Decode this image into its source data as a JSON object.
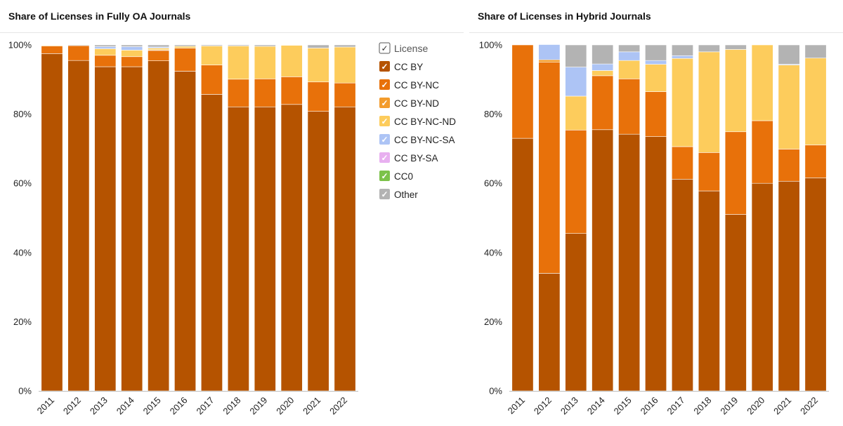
{
  "legend": {
    "header": "License",
    "items": [
      {
        "label": "CC BY",
        "color": "#b55300"
      },
      {
        "label": "CC BY-NC",
        "color": "#e8710a"
      },
      {
        "label": "CC BY-ND",
        "color": "#f39c2d"
      },
      {
        "label": "CC BY-NC-ND",
        "color": "#fdcc5c"
      },
      {
        "label": "CC BY-NC-SA",
        "color": "#adc4f5"
      },
      {
        "label": "CC BY-SA",
        "color": "#e8b0f0"
      },
      {
        "label": "CC0",
        "color": "#7cc24a"
      },
      {
        "label": "Other",
        "color": "#b3b3b3"
      }
    ]
  },
  "chart_data": [
    {
      "type": "bar",
      "stacked": true,
      "title": "Share of Licenses in Fully OA Journals",
      "categories": [
        "2011",
        "2012",
        "2013",
        "2014",
        "2015",
        "2016",
        "2017",
        "2018",
        "2019",
        "2020",
        "2021",
        "2022"
      ],
      "ylim": [
        0,
        100
      ],
      "yticks": [
        "0%",
        "20%",
        "40%",
        "60%",
        "80%",
        "100%"
      ],
      "grid": false,
      "legend_position": "right",
      "series": [
        {
          "name": "CC BY",
          "values": [
            97.5,
            95.5,
            93.7,
            93.7,
            95.4,
            92.4,
            85.7,
            82.1,
            82.1,
            82.8,
            80.8,
            82.1
          ]
        },
        {
          "name": "CC BY-NC",
          "values": [
            2.2,
            4.3,
            3.3,
            2.9,
            3.0,
            6.7,
            8.5,
            8.0,
            8.1,
            8.0,
            8.5,
            6.9
          ]
        },
        {
          "name": "CC BY-ND",
          "values": [
            0,
            0,
            0,
            0,
            0.2,
            0,
            0,
            0,
            0,
            0,
            0,
            0
          ]
        },
        {
          "name": "CC BY-NC-ND",
          "values": [
            0.2,
            0,
            1.9,
            1.9,
            0.5,
            0.5,
            5.5,
            9.6,
            9.4,
            9.1,
            9.8,
            10.4
          ]
        },
        {
          "name": "CC BY-NC-SA",
          "values": [
            0,
            0,
            0.6,
            1.0,
            0.3,
            0,
            0,
            0,
            0,
            0,
            0,
            0
          ]
        },
        {
          "name": "CC BY-SA",
          "values": [
            0,
            0,
            0,
            0,
            0,
            0,
            0,
            0,
            0,
            0,
            0,
            0
          ]
        },
        {
          "name": "CC0",
          "values": [
            0,
            0,
            0,
            0,
            0,
            0,
            0,
            0,
            0,
            0,
            0,
            0
          ]
        },
        {
          "name": "Other",
          "values": [
            0.1,
            0.2,
            0.5,
            0.5,
            0.6,
            0.4,
            0.3,
            0.3,
            0.4,
            0.1,
            0.9,
            0.6
          ]
        }
      ]
    },
    {
      "type": "bar",
      "stacked": true,
      "title": "Share of Licenses in Hybrid Journals",
      "categories": [
        "2011",
        "2012",
        "2013",
        "2014",
        "2015",
        "2016",
        "2017",
        "2018",
        "2019",
        "2020",
        "2021",
        "2022"
      ],
      "ylim": [
        0,
        100
      ],
      "yticks": [
        "0%",
        "20%",
        "40%",
        "60%",
        "80%",
        "100%"
      ],
      "grid": false,
      "series": [
        {
          "name": "CC BY",
          "values": [
            73,
            34,
            45.5,
            75.5,
            74.2,
            73.5,
            61.2,
            57.8,
            51.0,
            60.0,
            60.6,
            61.6
          ]
        },
        {
          "name": "CC BY-NC",
          "values": [
            27,
            61,
            29.9,
            15.6,
            16.0,
            13.0,
            9.4,
            11.1,
            23.9,
            18.1,
            9.3,
            9.5
          ]
        },
        {
          "name": "CC BY-ND",
          "values": [
            0,
            0.7,
            0,
            0,
            0,
            0,
            0,
            0,
            0,
            0,
            0,
            0
          ]
        },
        {
          "name": "CC BY-NC-ND",
          "values": [
            0,
            0,
            9.8,
            1.5,
            5.3,
            7.9,
            25.5,
            29.1,
            23.8,
            21.9,
            24.3,
            25.1
          ]
        },
        {
          "name": "CC BY-NC-SA",
          "values": [
            0,
            4.4,
            8.4,
            1.9,
            2.5,
            1.1,
            0.8,
            0,
            0,
            0,
            0.2,
            0
          ]
        },
        {
          "name": "CC BY-SA",
          "values": [
            0,
            0,
            0,
            0,
            0,
            0,
            0,
            0,
            0,
            0,
            0,
            0
          ]
        },
        {
          "name": "CC0",
          "values": [
            0,
            0,
            0,
            0,
            0,
            0,
            0,
            0,
            0,
            0,
            0,
            0
          ]
        },
        {
          "name": "Other",
          "values": [
            0,
            0,
            6.4,
            5.5,
            2.0,
            4.5,
            3.1,
            2.0,
            1.3,
            0,
            5.6,
            3.8
          ]
        }
      ]
    }
  ]
}
